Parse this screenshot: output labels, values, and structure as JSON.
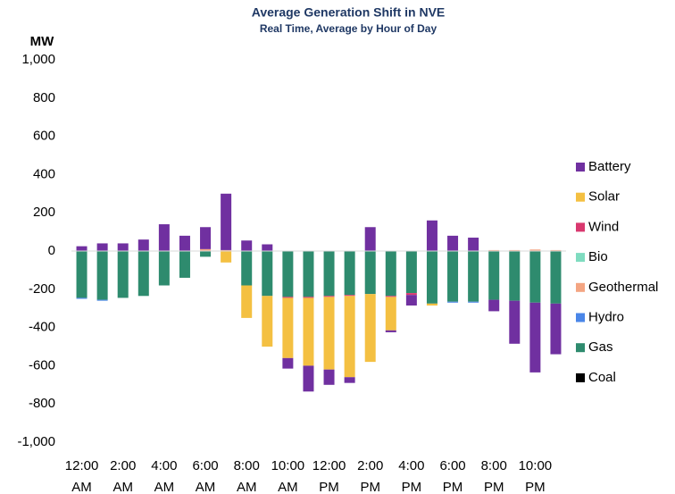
{
  "chart_data": {
    "type": "stacked-bar",
    "title": "Average Generation Shift in NVE",
    "subtitle": "Real Time, Average by Hour of Day",
    "y_axis_label": "MW",
    "categories": [
      "12:00 AM",
      null,
      "2:00 AM",
      null,
      "4:00 AM",
      null,
      "6:00 AM",
      null,
      "8:00 AM",
      null,
      "10:00 AM",
      null,
      "12:00 PM",
      null,
      "2:00 PM",
      null,
      "4:00 PM",
      null,
      "6:00 PM",
      null,
      "8:00 PM",
      null,
      "10:00 PM",
      null
    ],
    "series": [
      {
        "name": "Battery",
        "color": "#7030a0",
        "values": [
          25,
          40,
          40,
          60,
          140,
          80,
          115,
          295,
          55,
          35,
          -55,
          -135,
          -80,
          -30,
          125,
          -10,
          -55,
          160,
          80,
          70,
          -60,
          -225,
          -365,
          -265
        ]
      },
      {
        "name": "Solar",
        "color": "#f4c042",
        "values": [
          0,
          0,
          0,
          0,
          0,
          0,
          0,
          -60,
          -170,
          -265,
          -315,
          -355,
          -380,
          -425,
          -355,
          -175,
          0,
          -10,
          0,
          0,
          0,
          0,
          0,
          0
        ]
      },
      {
        "name": "Wind",
        "color": "#d9386f",
        "values": [
          0,
          0,
          0,
          0,
          0,
          0,
          0,
          0,
          0,
          0,
          -5,
          -5,
          -5,
          -5,
          0,
          -5,
          -10,
          0,
          0,
          0,
          0,
          0,
          0,
          0
        ]
      },
      {
        "name": "Bio",
        "color": "#7fdcc0",
        "values": [
          0,
          0,
          0,
          0,
          0,
          0,
          0,
          0,
          0,
          0,
          0,
          0,
          0,
          0,
          0,
          0,
          0,
          0,
          0,
          0,
          0,
          0,
          0,
          0
        ]
      },
      {
        "name": "Geothermal",
        "color": "#f4a582",
        "values": [
          0,
          0,
          0,
          0,
          0,
          0,
          10,
          5,
          0,
          0,
          0,
          0,
          0,
          0,
          0,
          0,
          0,
          0,
          0,
          0,
          5,
          5,
          8,
          5
        ]
      },
      {
        "name": "Hydro",
        "color": "#4a86e8",
        "values": [
          -5,
          -5,
          0,
          0,
          0,
          0,
          0,
          0,
          0,
          0,
          0,
          0,
          0,
          0,
          0,
          0,
          0,
          0,
          -5,
          -5,
          0,
          0,
          0,
          0
        ]
      },
      {
        "name": "Gas",
        "color": "#2e8b6e",
        "values": [
          -245,
          -255,
          -245,
          -235,
          -180,
          -140,
          -30,
          0,
          -180,
          -235,
          -240,
          -240,
          -235,
          -230,
          -225,
          -235,
          -220,
          -275,
          -265,
          -265,
          -255,
          -260,
          -270,
          -275
        ]
      },
      {
        "name": "Coal",
        "color": "#000000",
        "values": [
          0,
          0,
          0,
          0,
          0,
          0,
          0,
          0,
          0,
          0,
          0,
          0,
          0,
          0,
          0,
          0,
          0,
          0,
          0,
          0,
          0,
          0,
          0,
          0
        ]
      }
    ],
    "ylim": [
      -1000,
      1000
    ],
    "yticks": [
      {
        "value": -1000,
        "label": "-1,000"
      },
      -800,
      -600,
      -400,
      -200,
      0,
      200,
      400,
      600,
      800,
      {
        "value": 1000,
        "label": "1,000"
      }
    ],
    "grid": false,
    "legend": "right"
  }
}
